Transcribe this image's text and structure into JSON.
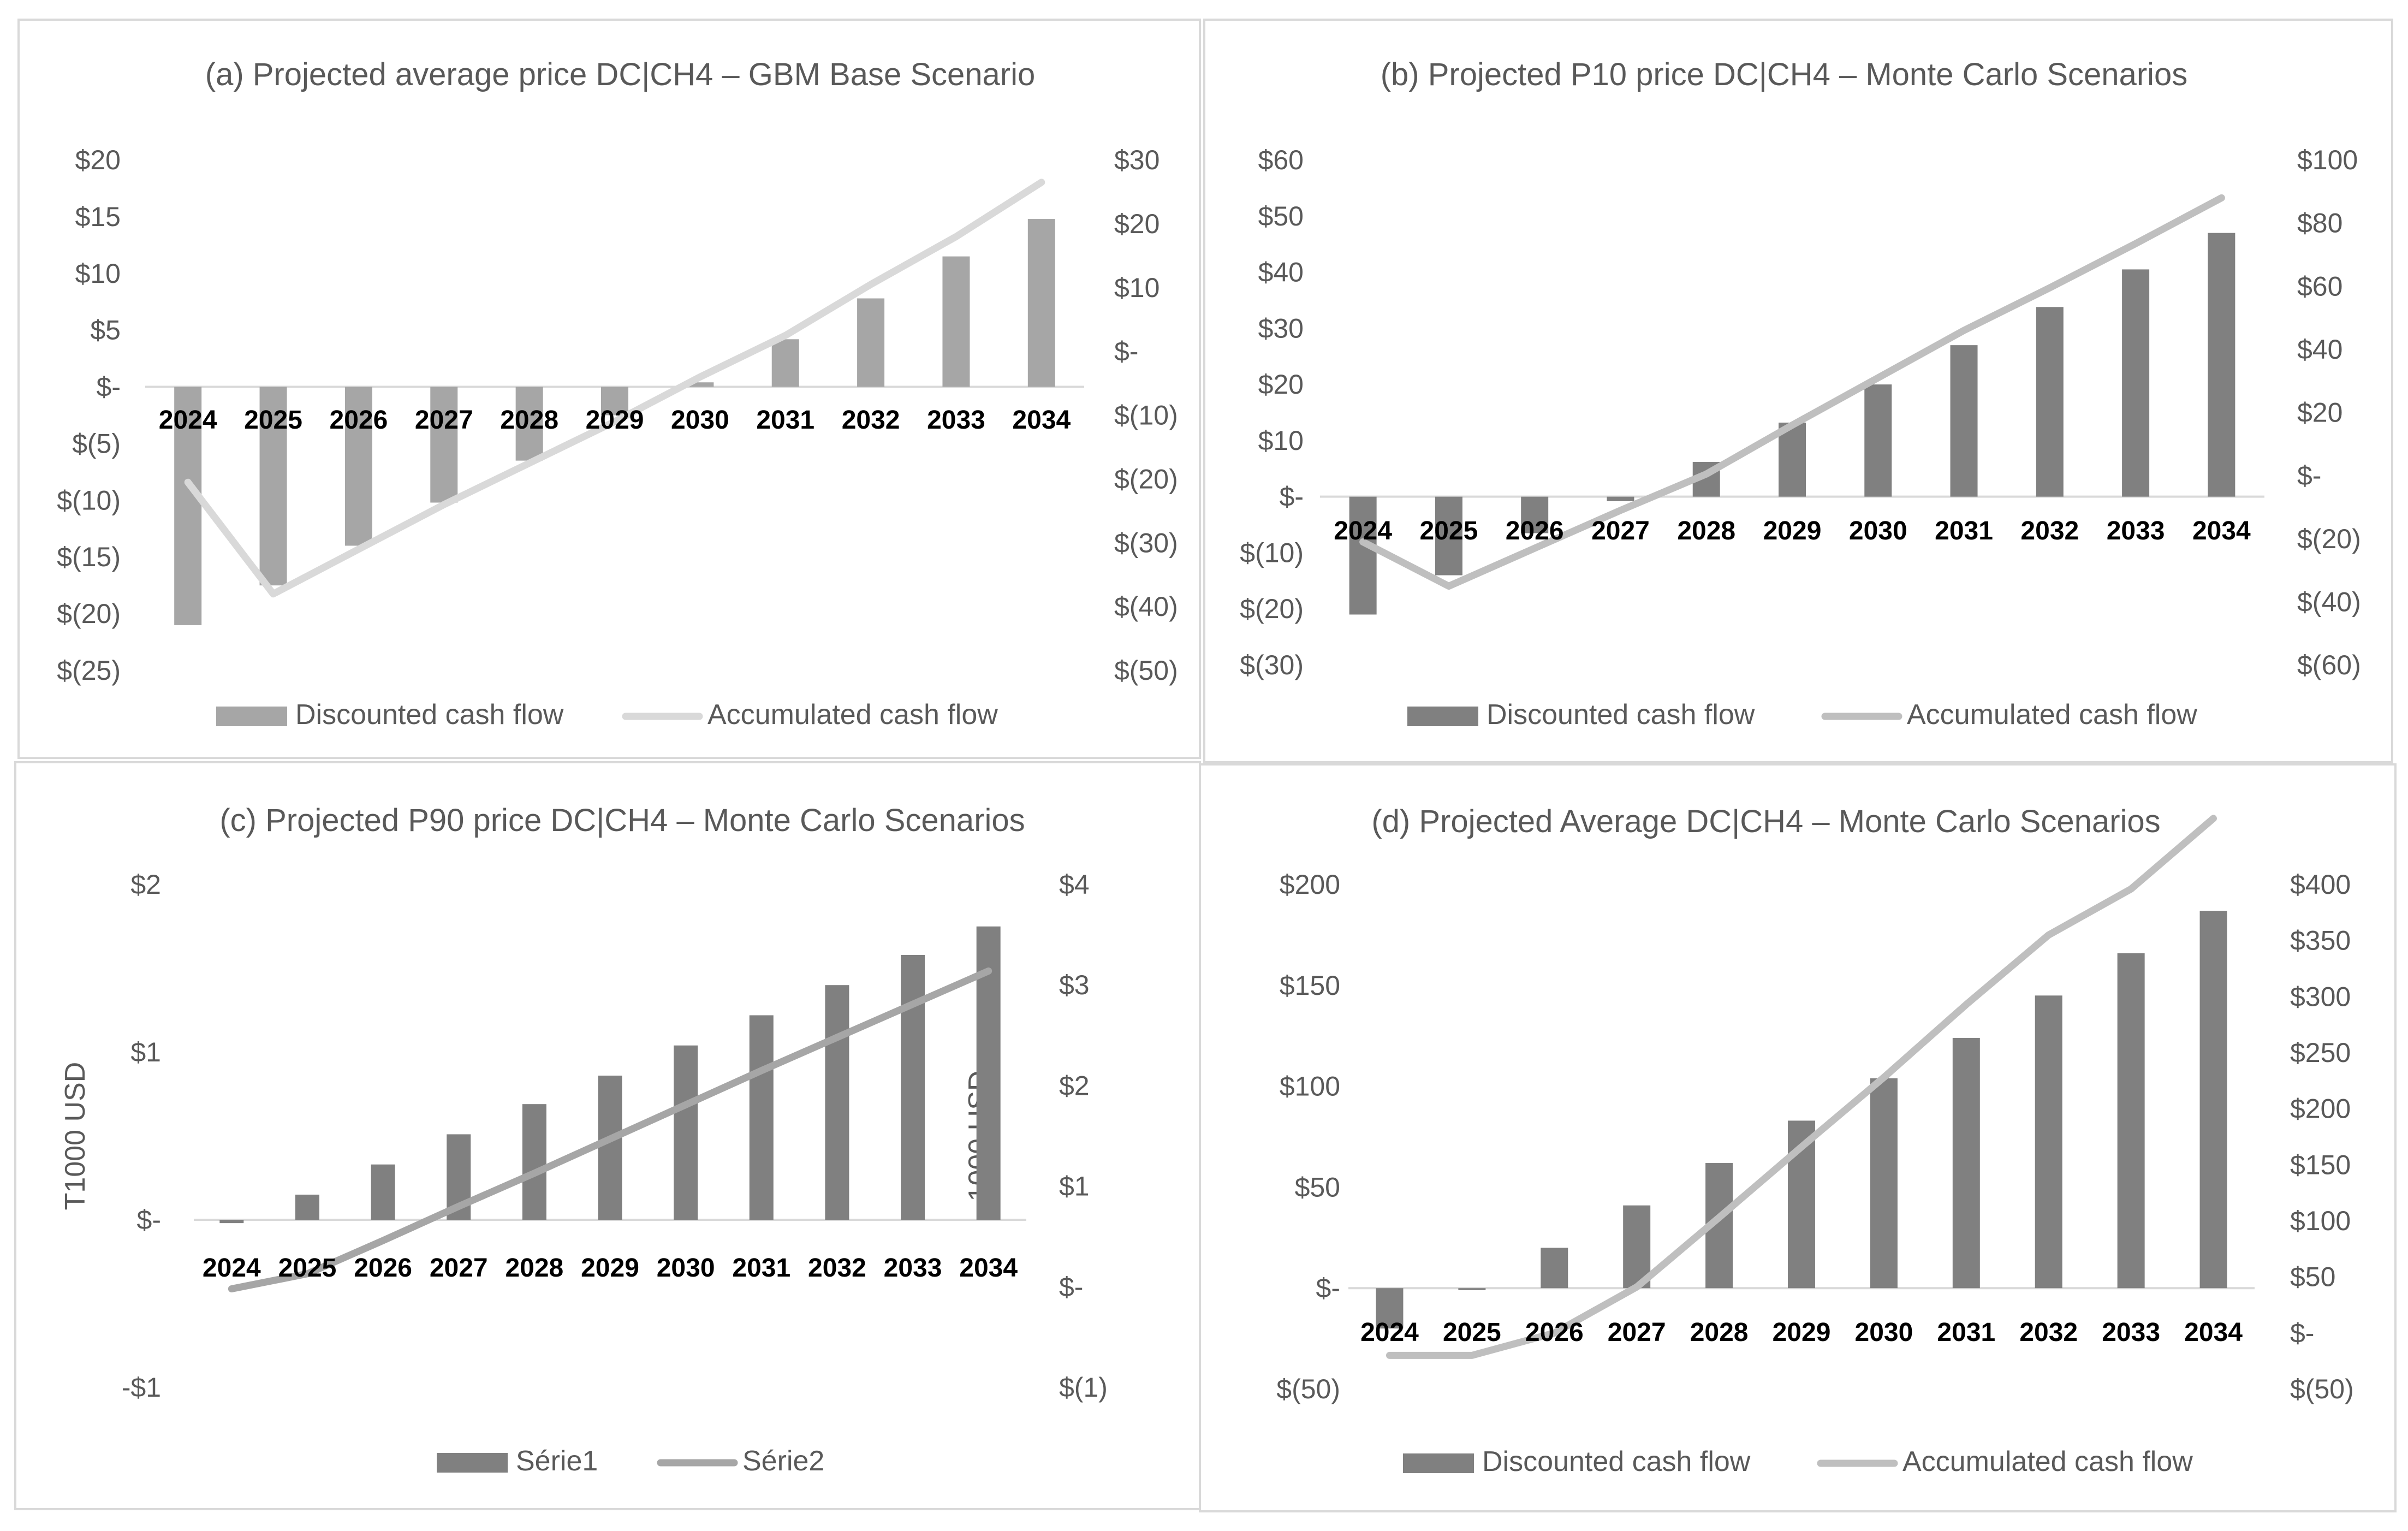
{
  "chart_data": [
    {
      "type": "bar+line",
      "title": "(a) Projected average price DC|CH4 – GBM Base Scenario",
      "categories": [
        "2024",
        "2025",
        "2026",
        "2027",
        "2028",
        "2029",
        "2030",
        "2031",
        "2032",
        "2033",
        "2034"
      ],
      "series": [
        {
          "name": "Discounted cash flow",
          "kind": "bar",
          "axis": "left",
          "color": "#a6a6a6",
          "values": [
            -21,
            -17.5,
            -14,
            -10.2,
            -6.5,
            -2.5,
            0.4,
            4.2,
            7.8,
            11.5,
            14.8
          ]
        },
        {
          "name": "Accumulated cash flow",
          "kind": "line",
          "axis": "right",
          "color": "#d9d9d9",
          "values": [
            -20.5,
            -38,
            -31,
            -24,
            -17.5,
            -11,
            -4,
            2.5,
            10.5,
            18,
            26.5
          ]
        }
      ],
      "y_left": {
        "min": -25,
        "max": 20,
        "ticks": [
          20,
          15,
          10,
          5,
          0,
          -5,
          -10,
          -15,
          -20,
          -25
        ],
        "labels": [
          "$20",
          "$15",
          "$10",
          "$5",
          "$-",
          "$(5)",
          "$(10)",
          "$(15)",
          "$(20)",
          "$(25)"
        ]
      },
      "y_right": {
        "min": -50,
        "max": 30,
        "ticks": [
          30,
          20,
          10,
          0,
          -10,
          -20,
          -30,
          -40,
          -50
        ],
        "labels": [
          "$30",
          "$20",
          "$10",
          "$-",
          "$(10)",
          "$(20)",
          "$(30)",
          "$(40)",
          "$(50)"
        ]
      },
      "ylabel_left": "",
      "ylabel_right": "",
      "legend": "bottom"
    },
    {
      "type": "bar+line",
      "title": "(b) Projected P10 price DC|CH4 – Monte Carlo Scenarios",
      "categories": [
        "2024",
        "2025",
        "2026",
        "2027",
        "2028",
        "2029",
        "2030",
        "2031",
        "2032",
        "2033",
        "2034"
      ],
      "series": [
        {
          "name": "Discounted cash flow",
          "kind": "bar",
          "axis": "left",
          "color": "#808080",
          "values": [
            -21,
            -14,
            -6.5,
            -0.8,
            6.2,
            13.2,
            20,
            27,
            33.8,
            40.5,
            47
          ]
        },
        {
          "name": "Accumulated cash flow",
          "kind": "line",
          "axis": "right",
          "color": "#bfbfbf",
          "values": [
            -21,
            -35,
            -23,
            -11,
            0.5,
            16,
            31,
            46,
            59.5,
            73.5,
            88
          ]
        }
      ],
      "y_left": {
        "min": -30,
        "max": 60,
        "ticks": [
          60,
          50,
          40,
          30,
          20,
          10,
          0,
          -10,
          -20,
          -30
        ],
        "labels": [
          "$60",
          "$50",
          "$40",
          "$30",
          "$20",
          "$10",
          "$-",
          "$(10)",
          "$(20)",
          "$(30)"
        ]
      },
      "y_right": {
        "min": -60,
        "max": 100,
        "ticks": [
          100,
          80,
          60,
          40,
          20,
          0,
          -20,
          -40,
          -60
        ],
        "labels": [
          "$100",
          "$80",
          "$60",
          "$40",
          "$20",
          "$-",
          "$(20)",
          "$(40)",
          "$(60)"
        ]
      },
      "ylabel_left": "",
      "ylabel_right": "",
      "legend": "bottom"
    },
    {
      "type": "bar+line",
      "title": "(c) Projected P90 price DC|CH4 – Monte Carlo Scenarios",
      "categories": [
        "2024",
        "2025",
        "2026",
        "2027",
        "2028",
        "2029",
        "2030",
        "2031",
        "2032",
        "2033",
        "2034"
      ],
      "series": [
        {
          "name": "Série1",
          "kind": "bar",
          "axis": "left",
          "color": "#808080",
          "values": [
            -0.02,
            0.15,
            0.33,
            0.51,
            0.69,
            0.86,
            1.04,
            1.22,
            1.4,
            1.58,
            1.75
          ]
        },
        {
          "name": "Série2",
          "kind": "line",
          "axis": "right",
          "color": "#a6a6a6",
          "values": [
            -0.02,
            0.13,
            0.46,
            0.8,
            1.13,
            1.47,
            1.81,
            2.15,
            2.48,
            2.81,
            3.14
          ]
        }
      ],
      "y_left": {
        "min": -1,
        "max": 2,
        "ticks": [
          2,
          1,
          0,
          -1
        ],
        "labels": [
          "$2",
          "$1",
          "$-",
          "-$1"
        ]
      },
      "y_right": {
        "min": -1,
        "max": 4,
        "ticks": [
          4,
          3,
          2,
          1,
          0,
          -1
        ],
        "labels": [
          "$4",
          "$3",
          "$2",
          "$1",
          "$-",
          "$(1)"
        ]
      },
      "ylabel_left": "T1000 USD",
      "ylabel_right": "1000 USD",
      "legend": "bottom"
    },
    {
      "type": "bar+line",
      "title": "(d) Projected Average DC|CH4 – Monte Carlo Scenarios",
      "categories": [
        "2024",
        "2025",
        "2026",
        "2027",
        "2028",
        "2029",
        "2030",
        "2031",
        "2032",
        "2033",
        "2034"
      ],
      "series": [
        {
          "name": "Discounted cash flow",
          "kind": "bar",
          "axis": "left",
          "color": "#808080",
          "values": [
            -20,
            -1,
            20,
            41,
            62,
            83,
            104,
            124,
            145,
            166,
            187
          ]
        },
        {
          "name": "Accumulated cash flow",
          "kind": "line",
          "axis": "right",
          "color": "#bfbfbf",
          "values": [
            -20,
            -20,
            0,
            41,
            103,
            166,
            228,
            293,
            355,
            396,
            459
          ]
        }
      ],
      "y_left": {
        "min": -50,
        "max": 200,
        "ticks": [
          200,
          150,
          100,
          50,
          0,
          -50
        ],
        "labels": [
          "$200",
          "$150",
          "$100",
          "$50",
          "$-",
          "$(50)"
        ]
      },
      "y_right": {
        "min": -50,
        "max": 400,
        "ticks": [
          400,
          350,
          300,
          250,
          200,
          150,
          100,
          50,
          0,
          -50
        ],
        "labels": [
          "$400",
          "$350",
          "$300",
          "$250",
          "$200",
          "$150",
          "$100",
          "$50",
          "$-",
          "$(50)"
        ]
      },
      "ylabel_left": "",
      "ylabel_right": "",
      "legend": "bottom"
    }
  ]
}
